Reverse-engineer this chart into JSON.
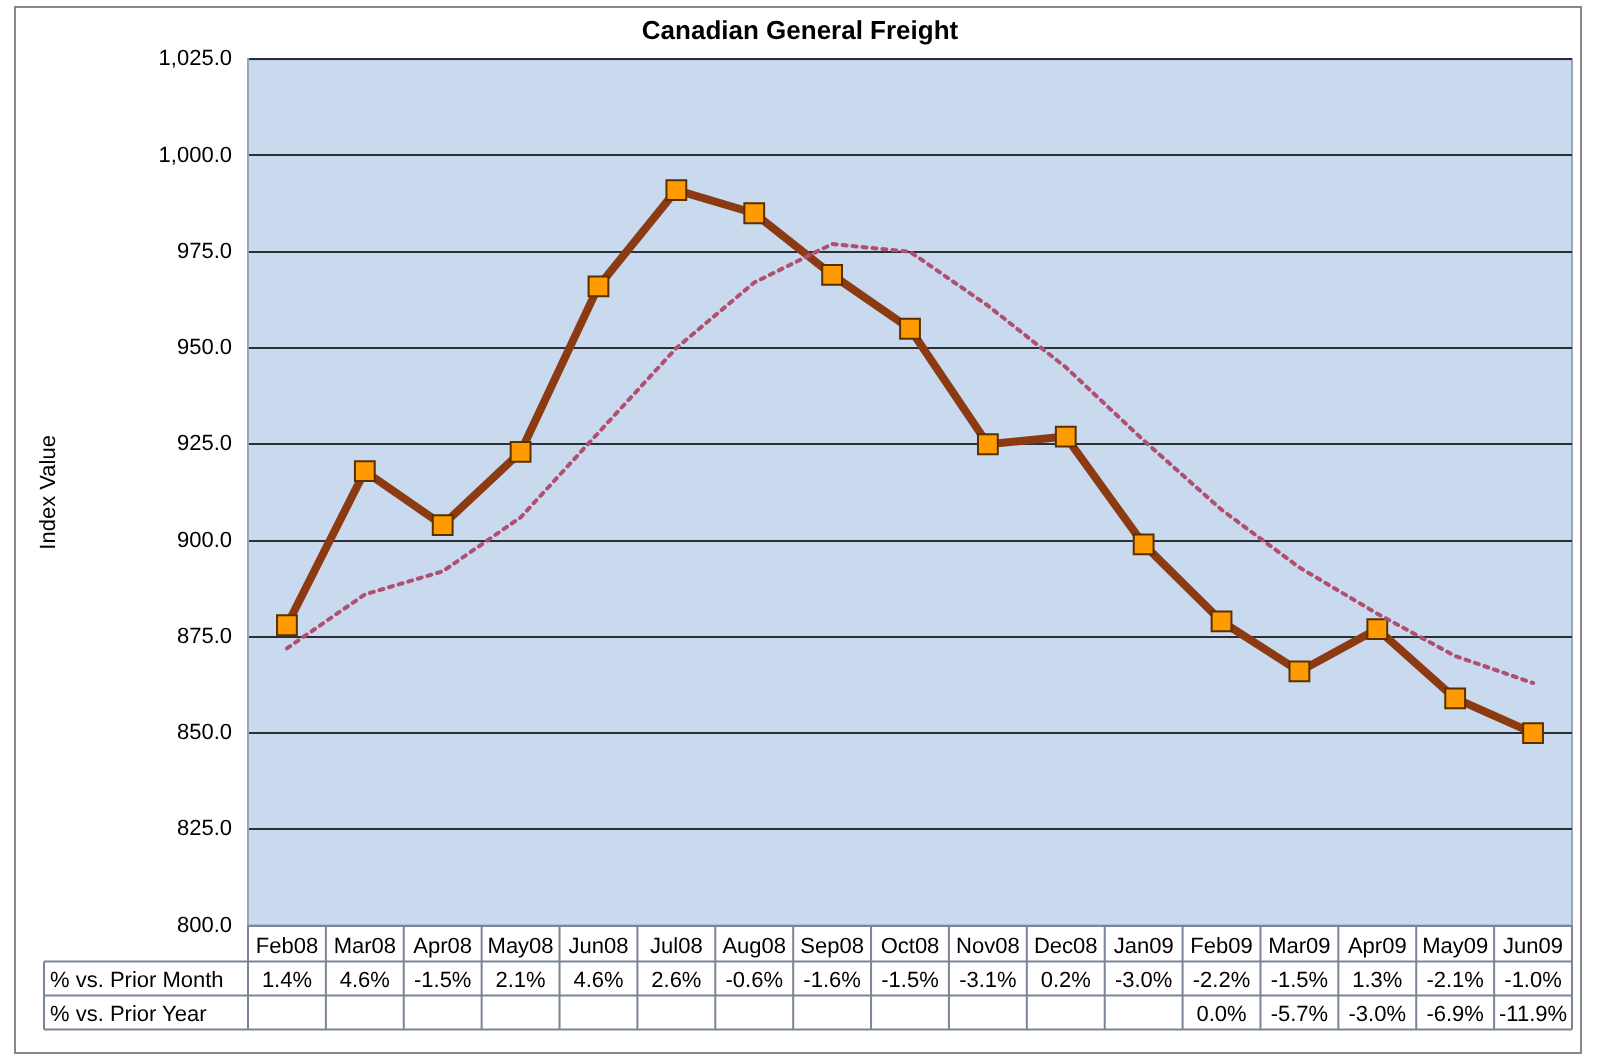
{
  "chart_data": {
    "type": "line",
    "title": "Canadian General Freight",
    "ylabel": "Index Value",
    "categories": [
      "Feb08",
      "Mar08",
      "Apr08",
      "May08",
      "Jun08",
      "Jul08",
      "Aug08",
      "Sep08",
      "Oct08",
      "Nov08",
      "Dec08",
      "Jan09",
      "Feb09",
      "Mar09",
      "Apr09",
      "May09",
      "Jun09"
    ],
    "series": [
      {
        "color": "#8b3a12",
        "marker": "square",
        "line_style": "solid",
        "values": [
          878,
          918,
          904,
          923,
          966,
          991,
          985,
          969,
          955,
          925,
          927,
          899,
          879,
          866,
          877,
          859,
          850
        ]
      },
      {
        "color": "#b05070",
        "marker": "none",
        "line_style": "dotted",
        "values": [
          872,
          886,
          892,
          906,
          928,
          950,
          967,
          977,
          975,
          961,
          945,
          926,
          908,
          893,
          881,
          870,
          863
        ]
      }
    ],
    "ylim": [
      800,
      1025
    ],
    "yticks": [
      {
        "value": 800,
        "label": "800.0"
      },
      {
        "value": 825,
        "label": "825.0"
      },
      {
        "value": 850,
        "label": "850.0"
      },
      {
        "value": 875,
        "label": "875.0"
      },
      {
        "value": 900,
        "label": "900.0"
      },
      {
        "value": 925,
        "label": "925.0"
      },
      {
        "value": 950,
        "label": "950.0"
      },
      {
        "value": 975,
        "label": "975.0"
      },
      {
        "value": 1000,
        "label": "1,000.0"
      },
      {
        "value": 1025,
        "label": "1,025.0"
      }
    ],
    "grid": "y",
    "legend": false,
    "annotations": [
      "% vs. Prior Month",
      "1.4%",
      "4.6%",
      "-1.5%",
      "2.1%",
      "4.6%",
      "2.6%",
      "-0.6%",
      "-1.6%",
      "-1.5%",
      "-3.1%",
      "0.2%",
      "-3.0%",
      "-2.2%",
      "-1.5%",
      "1.3%",
      "-2.1%",
      "-1.0%",
      "% vs. Prior Year",
      "0.0%",
      "-5.7%",
      "-3.0%",
      "-6.9%",
      "-11.9%"
    ]
  }
}
